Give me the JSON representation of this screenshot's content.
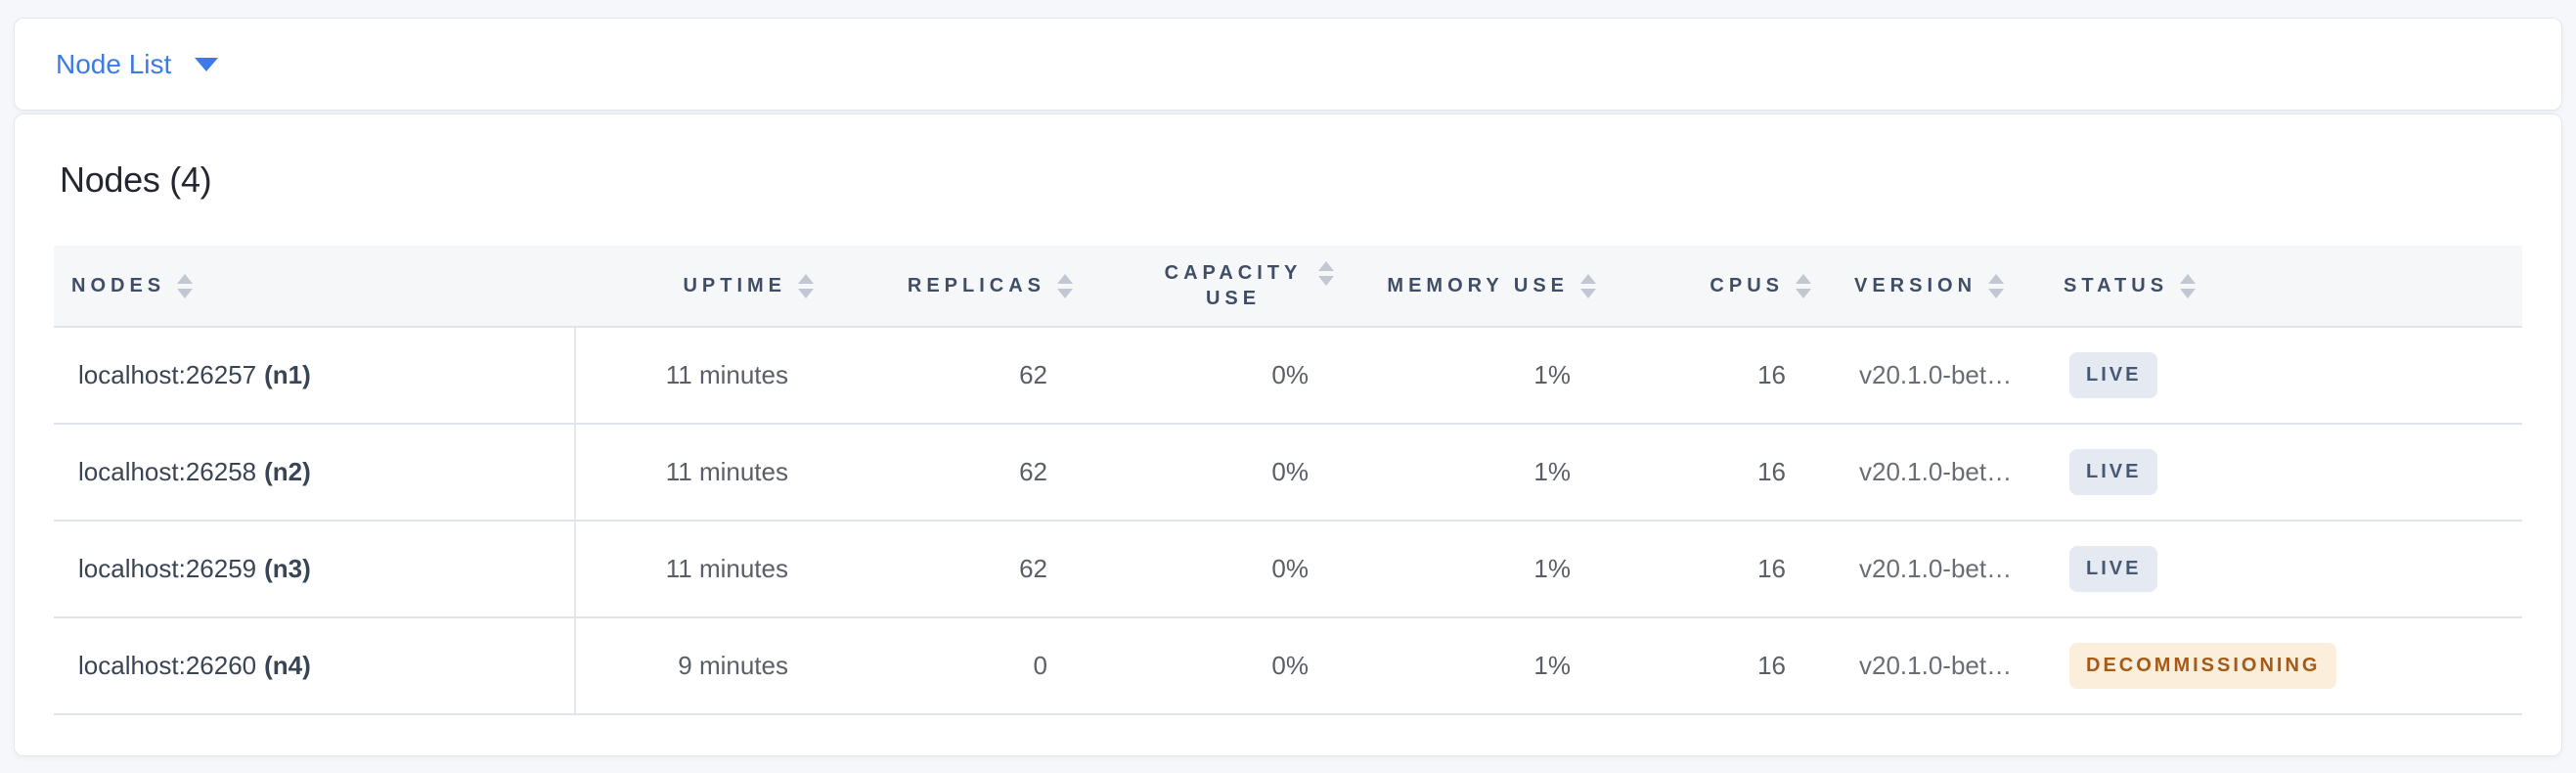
{
  "topbar": {
    "dropdown_label": "Node List"
  },
  "main": {
    "heading": "Nodes (4)"
  },
  "table": {
    "columns": [
      {
        "label": "NODES"
      },
      {
        "label": "UPTIME"
      },
      {
        "label": "REPLICAS"
      },
      {
        "label": "CAPACITY USE"
      },
      {
        "label": "MEMORY USE"
      },
      {
        "label": "CPUS"
      },
      {
        "label": "VERSION"
      },
      {
        "label": "STATUS"
      }
    ],
    "rows": [
      {
        "address": "localhost:26257",
        "id": "(n1)",
        "uptime": "11 minutes",
        "replicas": "62",
        "capacity": "0%",
        "memory": "1%",
        "cpus": "16",
        "version": "v20.1.0-bet…",
        "status": "LIVE",
        "status_type": "live"
      },
      {
        "address": "localhost:26258",
        "id": "(n2)",
        "uptime": "11 minutes",
        "replicas": "62",
        "capacity": "0%",
        "memory": "1%",
        "cpus": "16",
        "version": "v20.1.0-bet…",
        "status": "LIVE",
        "status_type": "live"
      },
      {
        "address": "localhost:26259",
        "id": "(n3)",
        "uptime": "11 minutes",
        "replicas": "62",
        "capacity": "0%",
        "memory": "1%",
        "cpus": "16",
        "version": "v20.1.0-bet…",
        "status": "LIVE",
        "status_type": "live"
      },
      {
        "address": "localhost:26260",
        "id": "(n4)",
        "uptime": "9 minutes",
        "replicas": "0",
        "capacity": "0%",
        "memory": "1%",
        "cpus": "16",
        "version": "v20.1.0-bet…",
        "status": "DECOMMISSIONING",
        "status_type": "decommissioning"
      }
    ]
  },
  "colors": {
    "accent_blue": "#3B7BE7",
    "page_background": "#F5F7FA",
    "header_text": "#3F4E66",
    "badge_live_bg": "#E5E9F1",
    "badge_live_text": "#475872",
    "badge_decommissioning_bg": "#FBEEDB",
    "badge_decommissioning_text": "#A55A18"
  }
}
